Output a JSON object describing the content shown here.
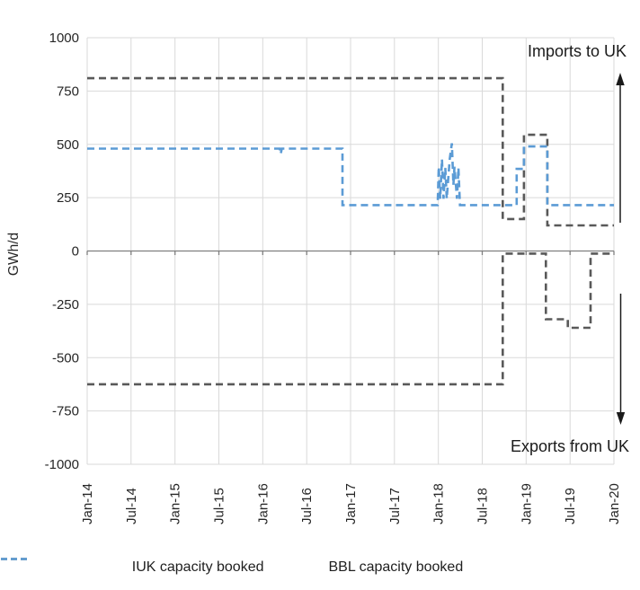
{
  "chart_data": {
    "type": "line",
    "ylabel": "GWh/d",
    "ylim": [
      -1000,
      1000
    ],
    "y_ticks": [
      1000,
      750,
      500,
      250,
      0,
      -250,
      -500,
      -750,
      -1000
    ],
    "x_tick_labels": [
      "Jan-14",
      "Jul-14",
      "Jan-15",
      "Jul-15",
      "Jan-16",
      "Jul-16",
      "Jan-17",
      "Jul-17",
      "Jan-18",
      "Jul-18",
      "Jan-19",
      "Jul-19",
      "Jan-20"
    ],
    "x_tick_months": [
      0,
      6,
      12,
      18,
      24,
      30,
      36,
      42,
      48,
      54,
      60,
      66,
      72
    ],
    "x_range_months": [
      0,
      72
    ],
    "grid": true,
    "legend_position": "bottom",
    "line_style": "dashed",
    "annotations": {
      "imports_label": "Imports to UK",
      "exports_label": "Exports from UK"
    },
    "series": [
      {
        "name": "IUK capacity booked",
        "color": "#595959",
        "segments": [
          [
            [
              0,
              810
            ],
            [
              56.8,
              810
            ],
            [
              56.8,
              150
            ],
            [
              59.7,
              150
            ],
            [
              59.7,
              545
            ],
            [
              62.9,
              545
            ],
            [
              62.9,
              120
            ],
            [
              72,
              120
            ]
          ],
          [
            [
              0,
              -625
            ],
            [
              56.8,
              -625
            ],
            [
              56.8,
              -12
            ],
            [
              62.7,
              -12
            ],
            [
              62.7,
              -320
            ],
            [
              65.7,
              -320
            ],
            [
              65.7,
              -360
            ],
            [
              68.8,
              -360
            ],
            [
              68.8,
              -12
            ],
            [
              72,
              -12
            ]
          ]
        ]
      },
      {
        "name": "BBL capacity booked",
        "color": "#5b9bd5",
        "segments": [
          [
            [
              0,
              480
            ],
            [
              26.3,
              480
            ],
            [
              26.45,
              455
            ],
            [
              26.6,
              480
            ],
            [
              34.9,
              480
            ],
            [
              34.9,
              215
            ],
            [
              47.9,
              215
            ],
            [
              48.05,
              395
            ],
            [
              48.25,
              245
            ],
            [
              48.5,
              430
            ],
            [
              48.7,
              245
            ],
            [
              48.95,
              390
            ],
            [
              49.15,
              245
            ],
            [
              49.55,
              430
            ],
            [
              49.85,
              505
            ],
            [
              50.05,
              310
            ],
            [
              50.2,
              395
            ],
            [
              50.55,
              245
            ],
            [
              50.75,
              390
            ],
            [
              50.95,
              215
            ],
            [
              58.7,
              215
            ],
            [
              58.7,
              385
            ],
            [
              59.7,
              385
            ],
            [
              59.7,
              490
            ],
            [
              62.9,
              490
            ],
            [
              62.9,
              215
            ],
            [
              72,
              215
            ]
          ]
        ]
      }
    ]
  }
}
